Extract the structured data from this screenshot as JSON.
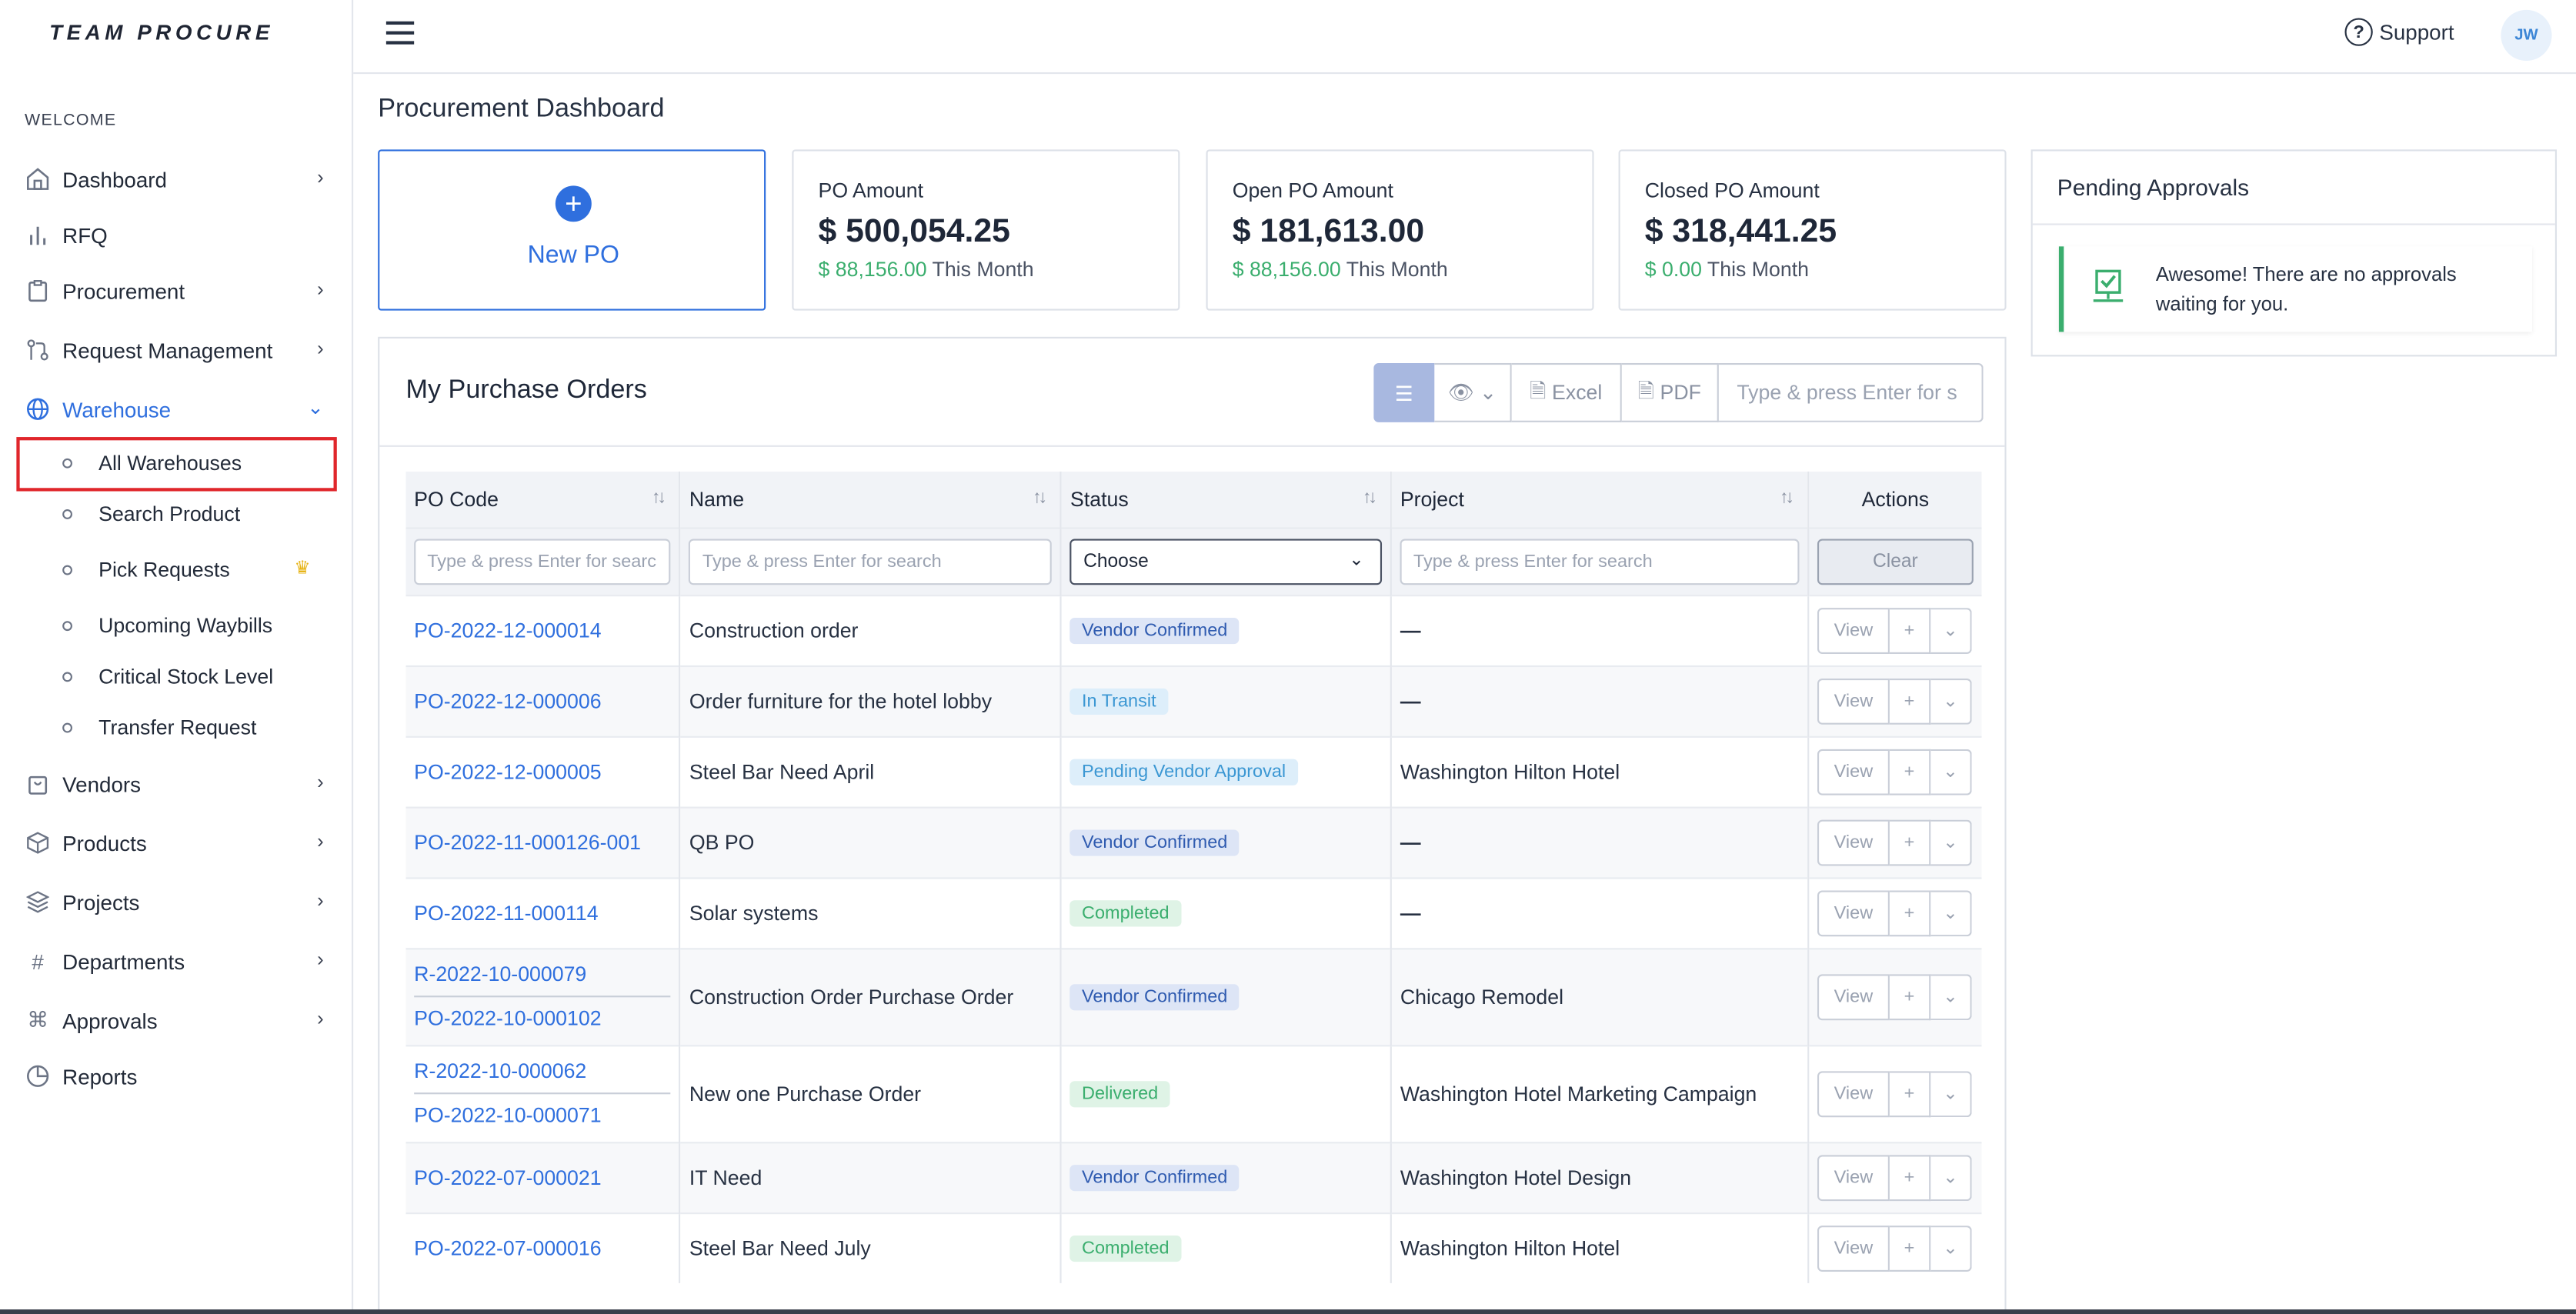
{
  "brand": {
    "logo": "TEAM PROCURE"
  },
  "sidebar": {
    "welcome": "WELCOME",
    "items": [
      {
        "label": "Dashboard",
        "icon": "home-icon"
      },
      {
        "label": "RFQ",
        "icon": "bar-chart-icon"
      },
      {
        "label": "Procurement",
        "icon": "clipboard-icon"
      },
      {
        "label": "Request Management",
        "icon": "git-pull-icon"
      },
      {
        "label": "Warehouse",
        "icon": "globe-icon"
      },
      {
        "label": "Vendors",
        "icon": "shopping-bag-icon"
      },
      {
        "label": "Products",
        "icon": "package-icon"
      },
      {
        "label": "Projects",
        "icon": "layers-icon"
      },
      {
        "label": "Departments",
        "icon": "hash-icon"
      },
      {
        "label": "Approvals",
        "icon": "command-icon"
      },
      {
        "label": "Reports",
        "icon": "pie-chart-icon"
      }
    ],
    "warehouse_sub": [
      {
        "label": "All Warehouses"
      },
      {
        "label": "Search Product"
      },
      {
        "label": "Pick Requests"
      },
      {
        "label": "Upcoming Waybills"
      },
      {
        "label": "Critical Stock Level"
      },
      {
        "label": "Transfer Request"
      }
    ]
  },
  "topbar": {
    "support": "Support",
    "avatar": "JW"
  },
  "page": {
    "title": "Procurement Dashboard"
  },
  "cards": {
    "new_po": "New PO",
    "po_amount": {
      "title": "PO Amount",
      "value": "$ 500,054.25",
      "month_value": "$ 88,156.00",
      "month_label": "This Month"
    },
    "open_po": {
      "title": "Open PO Amount",
      "value": "$ 181,613.00",
      "month_value": "$ 88,156.00",
      "month_label": "This Month"
    },
    "closed_po": {
      "title": "Closed PO Amount",
      "value": "$ 318,441.25",
      "month_value": "$ 0.00",
      "month_label": "This Month"
    }
  },
  "pending": {
    "title": "Pending Approvals",
    "message": "Awesome! There are no approvals waiting for you."
  },
  "orders": {
    "title": "My Purchase Orders",
    "tools": {
      "excel": "Excel",
      "pdf": "PDF",
      "search_placeholder": "Type & press Enter for s"
    },
    "columns": {
      "code": "PO Code",
      "name": "Name",
      "status": "Status",
      "project": "Project",
      "actions": "Actions"
    },
    "filters": {
      "code_placeholder": "Type & press Enter for searc",
      "name_placeholder": "Type & press Enter for search",
      "status_value": "Choose",
      "project_placeholder": "Type & press Enter for search",
      "clear": "Clear"
    },
    "action_labels": {
      "view": "View",
      "plus": "+",
      "more": "⌄"
    },
    "rows": [
      {
        "codes": [
          "PO-2022-12-000014"
        ],
        "name": "Construction order",
        "status": "Vendor Confirmed",
        "project": "—"
      },
      {
        "codes": [
          "PO-2022-12-000006"
        ],
        "name": "Order furniture for the hotel lobby",
        "status": "In Transit",
        "project": "—"
      },
      {
        "codes": [
          "PO-2022-12-000005"
        ],
        "name": "Steel Bar Need April",
        "status": "Pending Vendor Approval",
        "project": "Washington Hilton Hotel"
      },
      {
        "codes": [
          "PO-2022-11-000126-001"
        ],
        "name": "QB PO",
        "status": "Vendor Confirmed",
        "project": "—"
      },
      {
        "codes": [
          "PO-2022-11-000114"
        ],
        "name": "Solar systems",
        "status": "Completed",
        "project": "—"
      },
      {
        "codes": [
          "R-2022-10-000079",
          "PO-2022-10-000102"
        ],
        "name": "Construction Order Purchase Order",
        "status": "Vendor Confirmed",
        "project": "Chicago Remodel"
      },
      {
        "codes": [
          "R-2022-10-000062",
          "PO-2022-10-000071"
        ],
        "name": "New one Purchase Order",
        "status": "Delivered",
        "project": "Washington Hotel Marketing Campaign"
      },
      {
        "codes": [
          "PO-2022-07-000021"
        ],
        "name": "IT Need",
        "status": "Vendor Confirmed",
        "project": "Washington Hotel Design"
      },
      {
        "codes": [
          "PO-2022-07-000016"
        ],
        "name": "Steel Bar Need July",
        "status": "Completed",
        "project": "Washington Hilton Hotel"
      }
    ]
  },
  "colors": {
    "accent": "#2f6fde",
    "success": "#3bae6e",
    "highlight": "#e0262b"
  }
}
